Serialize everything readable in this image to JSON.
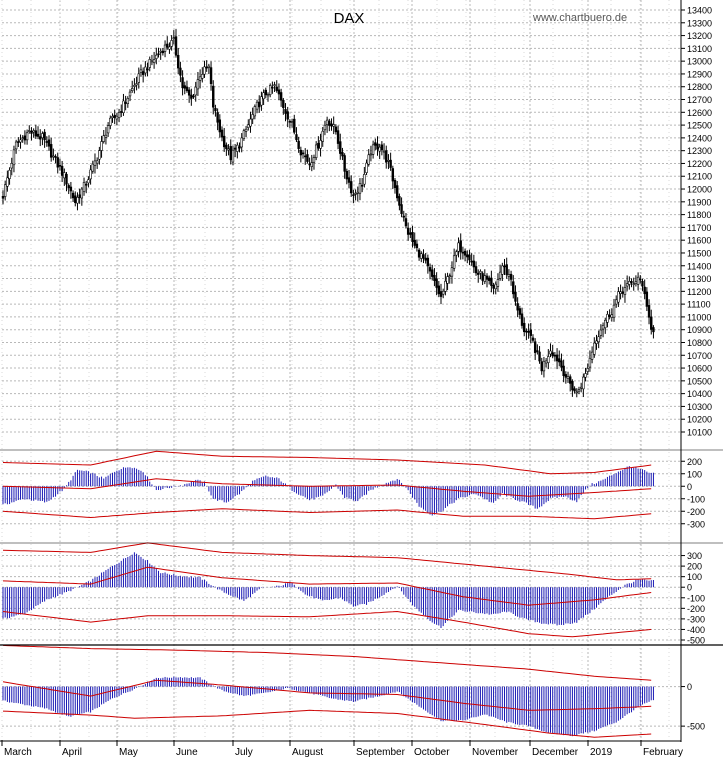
{
  "chart_data": {
    "type": "candlestick",
    "title": "DAX",
    "source": "www.chartbuero.de",
    "colors": {
      "grid": "#b8b8b8",
      "candle": "#000000",
      "histogram": "#1a1ab4",
      "bands": "#cc0000",
      "background": "#ffffff"
    },
    "x_months": [
      "March",
      "April",
      "May",
      "June",
      "July",
      "August",
      "September",
      "October",
      "November",
      "December",
      "2019",
      "February"
    ],
    "price_panel": {
      "ylim": [
        10100,
        13400
      ],
      "y_ticks": [
        "13400",
        "13300",
        "13200",
        "13100",
        "13000",
        "12900",
        "12800",
        "12700",
        "12600",
        "12500",
        "12400",
        "12300",
        "12200",
        "12100",
        "12000",
        "11900",
        "11800",
        "11700",
        "11600",
        "11500",
        "11400",
        "11300",
        "11200",
        "11100",
        "11000",
        "10900",
        "10800",
        "10700",
        "10600",
        "10500",
        "10400",
        "10300",
        "10200",
        "10100"
      ],
      "close_path": [
        [
          0,
          11950
        ],
        [
          6,
          12350
        ],
        [
          12,
          12450
        ],
        [
          18,
          12400
        ],
        [
          23,
          12250
        ],
        [
          28,
          12100
        ],
        [
          33,
          11900
        ],
        [
          38,
          12050
        ],
        [
          43,
          12250
        ],
        [
          48,
          12500
        ],
        [
          53,
          12600
        ],
        [
          58,
          12750
        ],
        [
          63,
          12900
        ],
        [
          68,
          13000
        ],
        [
          73,
          13100
        ],
        [
          78,
          13150
        ],
        [
          82,
          12800
        ],
        [
          86,
          12700
        ],
        [
          90,
          12900
        ],
        [
          94,
          12950
        ],
        [
          96,
          12650
        ],
        [
          100,
          12400
        ],
        [
          104,
          12250
        ],
        [
          108,
          12350
        ],
        [
          112,
          12500
        ],
        [
          116,
          12650
        ],
        [
          120,
          12750
        ],
        [
          124,
          12800
        ],
        [
          128,
          12650
        ],
        [
          132,
          12500
        ],
        [
          136,
          12300
        ],
        [
          140,
          12200
        ],
        [
          144,
          12350
        ],
        [
          148,
          12550
        ],
        [
          152,
          12450
        ],
        [
          156,
          12150
        ],
        [
          160,
          11950
        ],
        [
          164,
          12050
        ],
        [
          168,
          12300
        ],
        [
          172,
          12350
        ],
        [
          176,
          12200
        ],
        [
          180,
          11950
        ],
        [
          184,
          11700
        ],
        [
          188,
          11550
        ],
        [
          192,
          11450
        ],
        [
          196,
          11300
        ],
        [
          200,
          11150
        ],
        [
          204,
          11350
        ],
        [
          208,
          11550
        ],
        [
          212,
          11500
        ],
        [
          216,
          11350
        ],
        [
          220,
          11300
        ],
        [
          224,
          11200
        ],
        [
          228,
          11400
        ],
        [
          232,
          11300
        ],
        [
          234,
          11100
        ],
        [
          238,
          10900
        ],
        [
          242,
          10800
        ],
        [
          246,
          10600
        ],
        [
          250,
          10750
        ],
        [
          254,
          10650
        ],
        [
          258,
          10500
        ],
        [
          262,
          10400
        ],
        [
          266,
          10550
        ],
        [
          270,
          10800
        ],
        [
          274,
          10950
        ],
        [
          278,
          11050
        ],
        [
          282,
          11200
        ],
        [
          286,
          11250
        ],
        [
          290,
          11300
        ],
        [
          293,
          11200
        ],
        [
          296,
          10900
        ]
      ]
    },
    "oscillator_1": {
      "ylim": [
        -350,
        250
      ],
      "y_ticks": [
        "200",
        "100",
        "0",
        "-100",
        "-200",
        "-300"
      ],
      "histogram_path": [
        [
          0,
          -150
        ],
        [
          10,
          -100
        ],
        [
          20,
          -130
        ],
        [
          28,
          -20
        ],
        [
          34,
          130
        ],
        [
          40,
          110
        ],
        [
          46,
          60
        ],
        [
          52,
          130
        ],
        [
          58,
          160
        ],
        [
          64,
          120
        ],
        [
          70,
          -30
        ],
        [
          76,
          -10
        ],
        [
          82,
          10
        ],
        [
          88,
          50
        ],
        [
          92,
          30
        ],
        [
          96,
          -100
        ],
        [
          102,
          -130
        ],
        [
          108,
          -60
        ],
        [
          114,
          40
        ],
        [
          120,
          80
        ],
        [
          126,
          60
        ],
        [
          132,
          -30
        ],
        [
          140,
          -110
        ],
        [
          146,
          -80
        ],
        [
          152,
          10
        ],
        [
          156,
          -90
        ],
        [
          162,
          -120
        ],
        [
          168,
          -30
        ],
        [
          174,
          20
        ],
        [
          180,
          60
        ],
        [
          184,
          -10
        ],
        [
          190,
          -160
        ],
        [
          196,
          -230
        ],
        [
          200,
          -200
        ],
        [
          208,
          -100
        ],
        [
          216,
          -60
        ],
        [
          224,
          -140
        ],
        [
          228,
          -60
        ],
        [
          232,
          -90
        ],
        [
          238,
          -130
        ],
        [
          244,
          -180
        ],
        [
          250,
          -100
        ],
        [
          256,
          -80
        ],
        [
          262,
          -120
        ],
        [
          268,
          10
        ],
        [
          274,
          50
        ],
        [
          280,
          110
        ],
        [
          286,
          160
        ],
        [
          292,
          130
        ],
        [
          296,
          100
        ]
      ],
      "upper_band": [
        [
          0,
          190
        ],
        [
          40,
          170
        ],
        [
          70,
          280
        ],
        [
          100,
          240
        ],
        [
          140,
          230
        ],
        [
          180,
          210
        ],
        [
          220,
          170
        ],
        [
          250,
          100
        ],
        [
          270,
          110
        ],
        [
          296,
          170
        ]
      ],
      "middle_line": [
        [
          0,
          0
        ],
        [
          40,
          -20
        ],
        [
          70,
          60
        ],
        [
          100,
          20
        ],
        [
          140,
          0
        ],
        [
          180,
          10
        ],
        [
          210,
          -40
        ],
        [
          240,
          -80
        ],
        [
          270,
          -50
        ],
        [
          296,
          -20
        ]
      ],
      "lower_band": [
        [
          0,
          -200
        ],
        [
          40,
          -250
        ],
        [
          70,
          -210
        ],
        [
          100,
          -180
        ],
        [
          140,
          -210
        ],
        [
          180,
          -190
        ],
        [
          210,
          -240
        ],
        [
          240,
          -240
        ],
        [
          270,
          -260
        ],
        [
          296,
          -220
        ]
      ]
    },
    "oscillator_2": {
      "ylim": [
        -500,
        400
      ],
      "y_ticks": [
        "300",
        "200",
        "100",
        "0",
        "-100",
        "-200",
        "-300",
        "-400",
        "-500"
      ],
      "histogram_path": [
        [
          0,
          -300
        ],
        [
          10,
          -250
        ],
        [
          20,
          -120
        ],
        [
          30,
          -40
        ],
        [
          40,
          60
        ],
        [
          50,
          200
        ],
        [
          60,
          330
        ],
        [
          66,
          250
        ],
        [
          72,
          140
        ],
        [
          80,
          110
        ],
        [
          90,
          90
        ],
        [
          100,
          -40
        ],
        [
          110,
          -130
        ],
        [
          118,
          -10
        ],
        [
          126,
          10
        ],
        [
          132,
          50
        ],
        [
          138,
          -70
        ],
        [
          146,
          -130
        ],
        [
          154,
          -100
        ],
        [
          160,
          -180
        ],
        [
          166,
          -160
        ],
        [
          172,
          -90
        ],
        [
          180,
          10
        ],
        [
          188,
          -190
        ],
        [
          196,
          -330
        ],
        [
          200,
          -380
        ],
        [
          208,
          -220
        ],
        [
          216,
          -240
        ],
        [
          224,
          -260
        ],
        [
          230,
          -230
        ],
        [
          238,
          -300
        ],
        [
          246,
          -340
        ],
        [
          254,
          -360
        ],
        [
          262,
          -330
        ],
        [
          268,
          -240
        ],
        [
          276,
          -100
        ],
        [
          284,
          20
        ],
        [
          290,
          70
        ],
        [
          296,
          60
        ]
      ],
      "upper_band": [
        [
          0,
          350
        ],
        [
          40,
          330
        ],
        [
          66,
          420
        ],
        [
          100,
          330
        ],
        [
          140,
          300
        ],
        [
          180,
          280
        ],
        [
          220,
          200
        ],
        [
          260,
          120
        ],
        [
          280,
          70
        ],
        [
          296,
          80
        ]
      ],
      "middle_line": [
        [
          0,
          60
        ],
        [
          40,
          30
        ],
        [
          66,
          190
        ],
        [
          100,
          90
        ],
        [
          140,
          30
        ],
        [
          180,
          40
        ],
        [
          210,
          -90
        ],
        [
          240,
          -170
        ],
        [
          270,
          -120
        ],
        [
          296,
          -50
        ]
      ],
      "lower_band": [
        [
          0,
          -230
        ],
        [
          40,
          -330
        ],
        [
          66,
          -270
        ],
        [
          100,
          -270
        ],
        [
          140,
          -280
        ],
        [
          180,
          -230
        ],
        [
          210,
          -330
        ],
        [
          240,
          -440
        ],
        [
          260,
          -470
        ],
        [
          296,
          -400
        ]
      ]
    },
    "oscillator_3": {
      "ylim": [
        -650,
        500
      ],
      "y_ticks": [
        "0",
        "-500"
      ],
      "histogram_path": [
        [
          0,
          -180
        ],
        [
          20,
          -280
        ],
        [
          30,
          -380
        ],
        [
          40,
          -320
        ],
        [
          50,
          -150
        ],
        [
          60,
          -30
        ],
        [
          70,
          110
        ],
        [
          80,
          120
        ],
        [
          90,
          110
        ],
        [
          100,
          -50
        ],
        [
          110,
          -120
        ],
        [
          120,
          -80
        ],
        [
          130,
          -20
        ],
        [
          140,
          -80
        ],
        [
          150,
          -150
        ],
        [
          160,
          -190
        ],
        [
          170,
          -130
        ],
        [
          180,
          -60
        ],
        [
          190,
          -250
        ],
        [
          200,
          -430
        ],
        [
          210,
          -430
        ],
        [
          220,
          -350
        ],
        [
          230,
          -450
        ],
        [
          240,
          -500
        ],
        [
          250,
          -590
        ],
        [
          260,
          -620
        ],
        [
          270,
          -560
        ],
        [
          280,
          -450
        ],
        [
          290,
          -260
        ],
        [
          296,
          -180
        ]
      ],
      "upper_band": [
        [
          0,
          520
        ],
        [
          40,
          480
        ],
        [
          80,
          460
        ],
        [
          120,
          430
        ],
        [
          160,
          380
        ],
        [
          200,
          300
        ],
        [
          240,
          220
        ],
        [
          270,
          130
        ],
        [
          296,
          80
        ]
      ],
      "middle_line": [
        [
          0,
          60
        ],
        [
          40,
          -120
        ],
        [
          70,
          80
        ],
        [
          100,
          20
        ],
        [
          140,
          -80
        ],
        [
          180,
          -100
        ],
        [
          210,
          -210
        ],
        [
          240,
          -300
        ],
        [
          270,
          -280
        ],
        [
          296,
          -250
        ]
      ],
      "lower_band": [
        [
          0,
          -310
        ],
        [
          40,
          -360
        ],
        [
          60,
          -400
        ],
        [
          100,
          -370
        ],
        [
          140,
          -300
        ],
        [
          180,
          -340
        ],
        [
          220,
          -480
        ],
        [
          250,
          -590
        ],
        [
          270,
          -640
        ],
        [
          296,
          -600
        ]
      ]
    }
  }
}
